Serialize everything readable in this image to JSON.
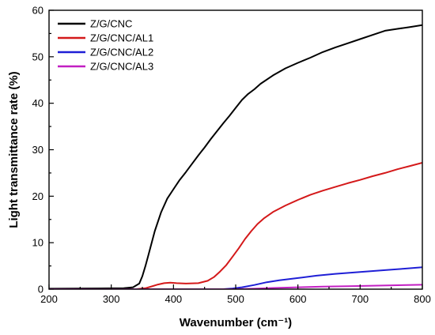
{
  "chart_data": {
    "type": "line",
    "xlabel": "Wavenumber (cm⁻¹)",
    "ylabel": "Light transmittance rate (%)",
    "xlim": [
      200,
      800
    ],
    "ylim": [
      0,
      60
    ],
    "xticks": [
      "200",
      "300",
      "400",
      "500",
      "600",
      "700",
      "800"
    ],
    "yticks": [
      "0",
      "10",
      "20",
      "30",
      "40",
      "50",
      "60"
    ],
    "legend_position": "top-left",
    "grid": false,
    "series": [
      {
        "name": "Z/G/CNC",
        "color": "#000000",
        "x": [
          200,
          320,
          335,
          345,
          350,
          355,
          360,
          370,
          380,
          390,
          400,
          410,
          420,
          430,
          440,
          450,
          460,
          470,
          480,
          490,
          500,
          510,
          520,
          530,
          540,
          560,
          580,
          600,
          620,
          640,
          660,
          680,
          700,
          720,
          740,
          760,
          780,
          800
        ],
        "y": [
          0.1,
          0.2,
          0.4,
          1.2,
          2.8,
          5,
          7.5,
          12.5,
          16.5,
          19.5,
          21.5,
          23.5,
          25.2,
          27,
          28.8,
          30.5,
          32.3,
          34,
          35.7,
          37.3,
          39,
          40.7,
          42,
          43,
          44.2,
          46,
          47.5,
          48.7,
          49.8,
          51,
          52,
          52.9,
          53.8,
          54.7,
          55.6,
          56,
          56.4,
          56.8
        ]
      },
      {
        "name": "Z/G/CNC/AL1",
        "color": "#d4191a",
        "x": [
          200,
          340,
          355,
          365,
          375,
          385,
          395,
          405,
          420,
          440,
          455,
          465,
          475,
          485,
          495,
          505,
          515,
          525,
          535,
          545,
          560,
          580,
          600,
          620,
          640,
          660,
          680,
          700,
          720,
          740,
          760,
          780,
          800
        ],
        "y": [
          0,
          0,
          0.2,
          0.6,
          1.0,
          1.3,
          1.4,
          1.3,
          1.2,
          1.3,
          1.8,
          2.6,
          3.8,
          5.2,
          7,
          8.8,
          10.8,
          12.5,
          14,
          15.2,
          16.6,
          18,
          19.2,
          20.3,
          21.2,
          22,
          22.8,
          23.5,
          24.3,
          25,
          25.8,
          26.5,
          27.2
        ]
      },
      {
        "name": "Z/G/CNC/AL2",
        "color": "#1f1fd6",
        "x": [
          200,
          480,
          495,
          510,
          530,
          550,
          570,
          600,
          630,
          660,
          700,
          740,
          770,
          800
        ],
        "y": [
          0,
          0,
          0.15,
          0.4,
          0.9,
          1.5,
          1.9,
          2.4,
          2.9,
          3.3,
          3.7,
          4.1,
          4.4,
          4.7
        ]
      },
      {
        "name": "Z/G/CNC/AL3",
        "color": "#c21fc2",
        "x": [
          200,
          500,
          530,
          560,
          600,
          640,
          680,
          720,
          760,
          800
        ],
        "y": [
          0,
          0,
          0.1,
          0.25,
          0.4,
          0.55,
          0.65,
          0.75,
          0.85,
          0.95
        ]
      }
    ]
  }
}
